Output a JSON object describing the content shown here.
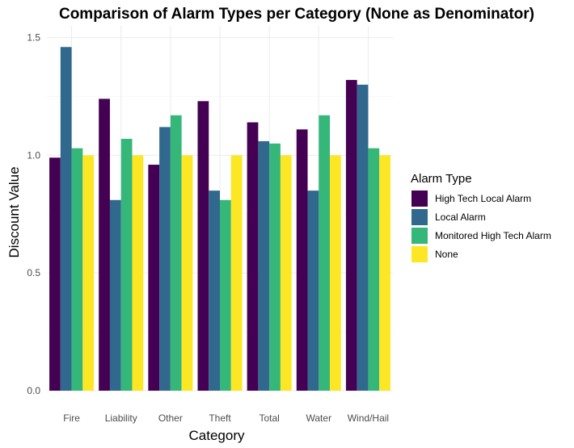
{
  "chart_data": {
    "type": "bar",
    "title": "Comparison of Alarm Types per Category (None as Denominator)",
    "xlabel": "Category",
    "ylabel": "Discount Value",
    "ylim": [
      0,
      1.55
    ],
    "yticks": [
      0.0,
      0.5,
      1.0,
      1.5
    ],
    "ytick_labels": [
      "0.0",
      "0.5",
      "1.0",
      "1.5"
    ],
    "grid": true,
    "legend": {
      "title": "Alarm Type",
      "placement": "right"
    },
    "categories": [
      "Fire",
      "Liability",
      "Other",
      "Theft",
      "Total",
      "Water",
      "Wind/Hail"
    ],
    "series": [
      {
        "name": "High Tech Local Alarm",
        "color": "#440154",
        "values": [
          0.99,
          1.24,
          0.96,
          1.23,
          1.14,
          1.11,
          1.32
        ]
      },
      {
        "name": "Local Alarm",
        "color": "#31688e",
        "values": [
          1.46,
          0.81,
          1.12,
          0.85,
          1.06,
          0.85,
          1.3
        ]
      },
      {
        "name": "Monitored High Tech Alarm",
        "color": "#35b779",
        "values": [
          1.03,
          1.07,
          1.17,
          0.81,
          1.05,
          1.17,
          1.03
        ]
      },
      {
        "name": "None",
        "color": "#fde725",
        "values": [
          1.0,
          1.0,
          1.0,
          1.0,
          1.0,
          1.0,
          1.0
        ]
      }
    ]
  }
}
